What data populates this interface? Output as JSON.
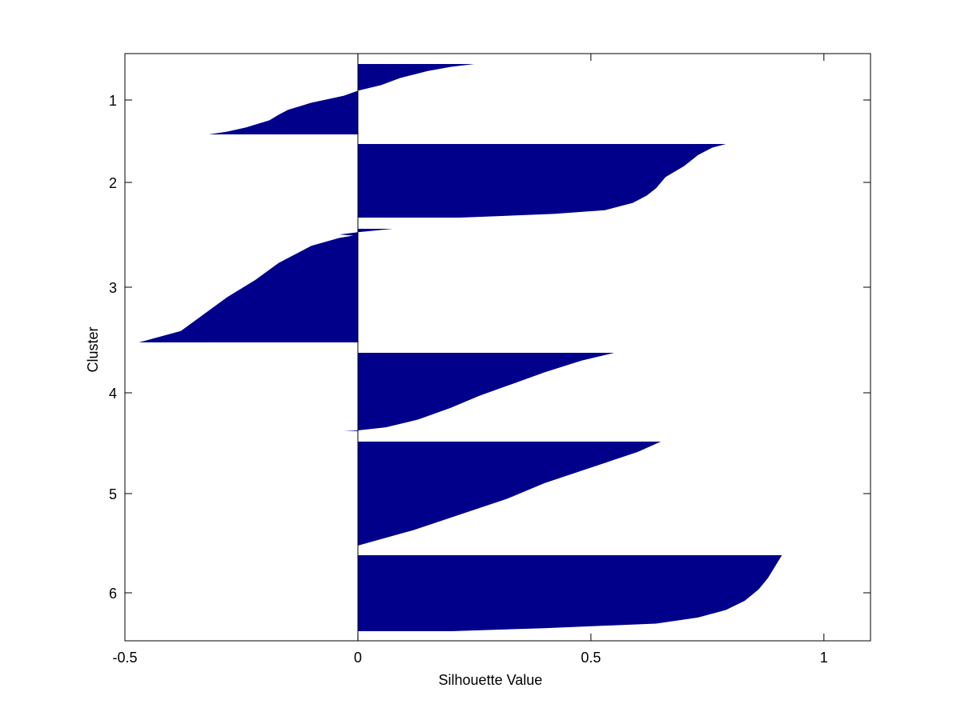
{
  "chart_data": {
    "type": "bar",
    "orientation": "horizontal",
    "title": "",
    "xlabel": "Silhouette Value",
    "ylabel": "Cluster",
    "xlim": [
      -0.5,
      1.1
    ],
    "x_ticks": [
      -0.5,
      0,
      0.5,
      1
    ],
    "x_tick_labels": [
      "-0.5",
      "0",
      "0.5",
      "1"
    ],
    "y_tick_labels": [
      "1",
      "2",
      "3",
      "4",
      "5",
      "6"
    ],
    "grid": false,
    "bar_color": "#00008B",
    "clusters": [
      {
        "label": "1",
        "profile": [
          [
            0,
            0.25
          ],
          [
            0.04,
            0.2
          ],
          [
            0.1,
            0.15
          ],
          [
            0.2,
            0.09
          ],
          [
            0.3,
            0.05
          ],
          [
            0.38,
            0.0
          ],
          [
            0.45,
            -0.03
          ],
          [
            0.55,
            -0.1
          ],
          [
            0.65,
            -0.15
          ],
          [
            0.72,
            -0.17
          ],
          [
            0.8,
            -0.19
          ],
          [
            0.9,
            -0.24
          ],
          [
            0.96,
            -0.28
          ],
          [
            1,
            -0.32
          ]
        ]
      },
      {
        "label": "2",
        "profile": [
          [
            0,
            0.79
          ],
          [
            0.05,
            0.76
          ],
          [
            0.15,
            0.73
          ],
          [
            0.3,
            0.7
          ],
          [
            0.45,
            0.66
          ],
          [
            0.6,
            0.64
          ],
          [
            0.7,
            0.62
          ],
          [
            0.8,
            0.59
          ],
          [
            0.9,
            0.53
          ],
          [
            0.95,
            0.42
          ],
          [
            1,
            0.22
          ]
        ]
      },
      {
        "label": "3",
        "profile": [
          [
            0,
            0.075
          ],
          [
            0.03,
            0.0
          ],
          [
            0.05,
            -0.04
          ],
          [
            0.06,
            -0.01
          ],
          [
            0.08,
            -0.04
          ],
          [
            0.15,
            -0.1
          ],
          [
            0.3,
            -0.17
          ],
          [
            0.45,
            -0.22
          ],
          [
            0.6,
            -0.28
          ],
          [
            0.75,
            -0.33
          ],
          [
            0.9,
            -0.38
          ],
          [
            1,
            -0.47
          ]
        ]
      },
      {
        "label": "4",
        "profile": [
          [
            0,
            0.55
          ],
          [
            0.1,
            0.48
          ],
          [
            0.25,
            0.4
          ],
          [
            0.4,
            0.33
          ],
          [
            0.55,
            0.26
          ],
          [
            0.7,
            0.2
          ],
          [
            0.85,
            0.13
          ],
          [
            0.95,
            0.06
          ],
          [
            0.99,
            0.0
          ],
          [
            1,
            -0.03
          ]
        ]
      },
      {
        "label": "5",
        "profile": [
          [
            0,
            0.65
          ],
          [
            0.1,
            0.6
          ],
          [
            0.25,
            0.5
          ],
          [
            0.4,
            0.4
          ],
          [
            0.55,
            0.32
          ],
          [
            0.7,
            0.22
          ],
          [
            0.85,
            0.12
          ],
          [
            1,
            0.0
          ]
        ]
      },
      {
        "label": "6",
        "profile": [
          [
            0,
            0.91
          ],
          [
            0.1,
            0.9
          ],
          [
            0.2,
            0.89
          ],
          [
            0.3,
            0.88
          ],
          [
            0.45,
            0.86
          ],
          [
            0.6,
            0.83
          ],
          [
            0.72,
            0.79
          ],
          [
            0.82,
            0.73
          ],
          [
            0.9,
            0.64
          ],
          [
            0.96,
            0.4
          ],
          [
            1,
            0.2
          ]
        ]
      }
    ]
  }
}
